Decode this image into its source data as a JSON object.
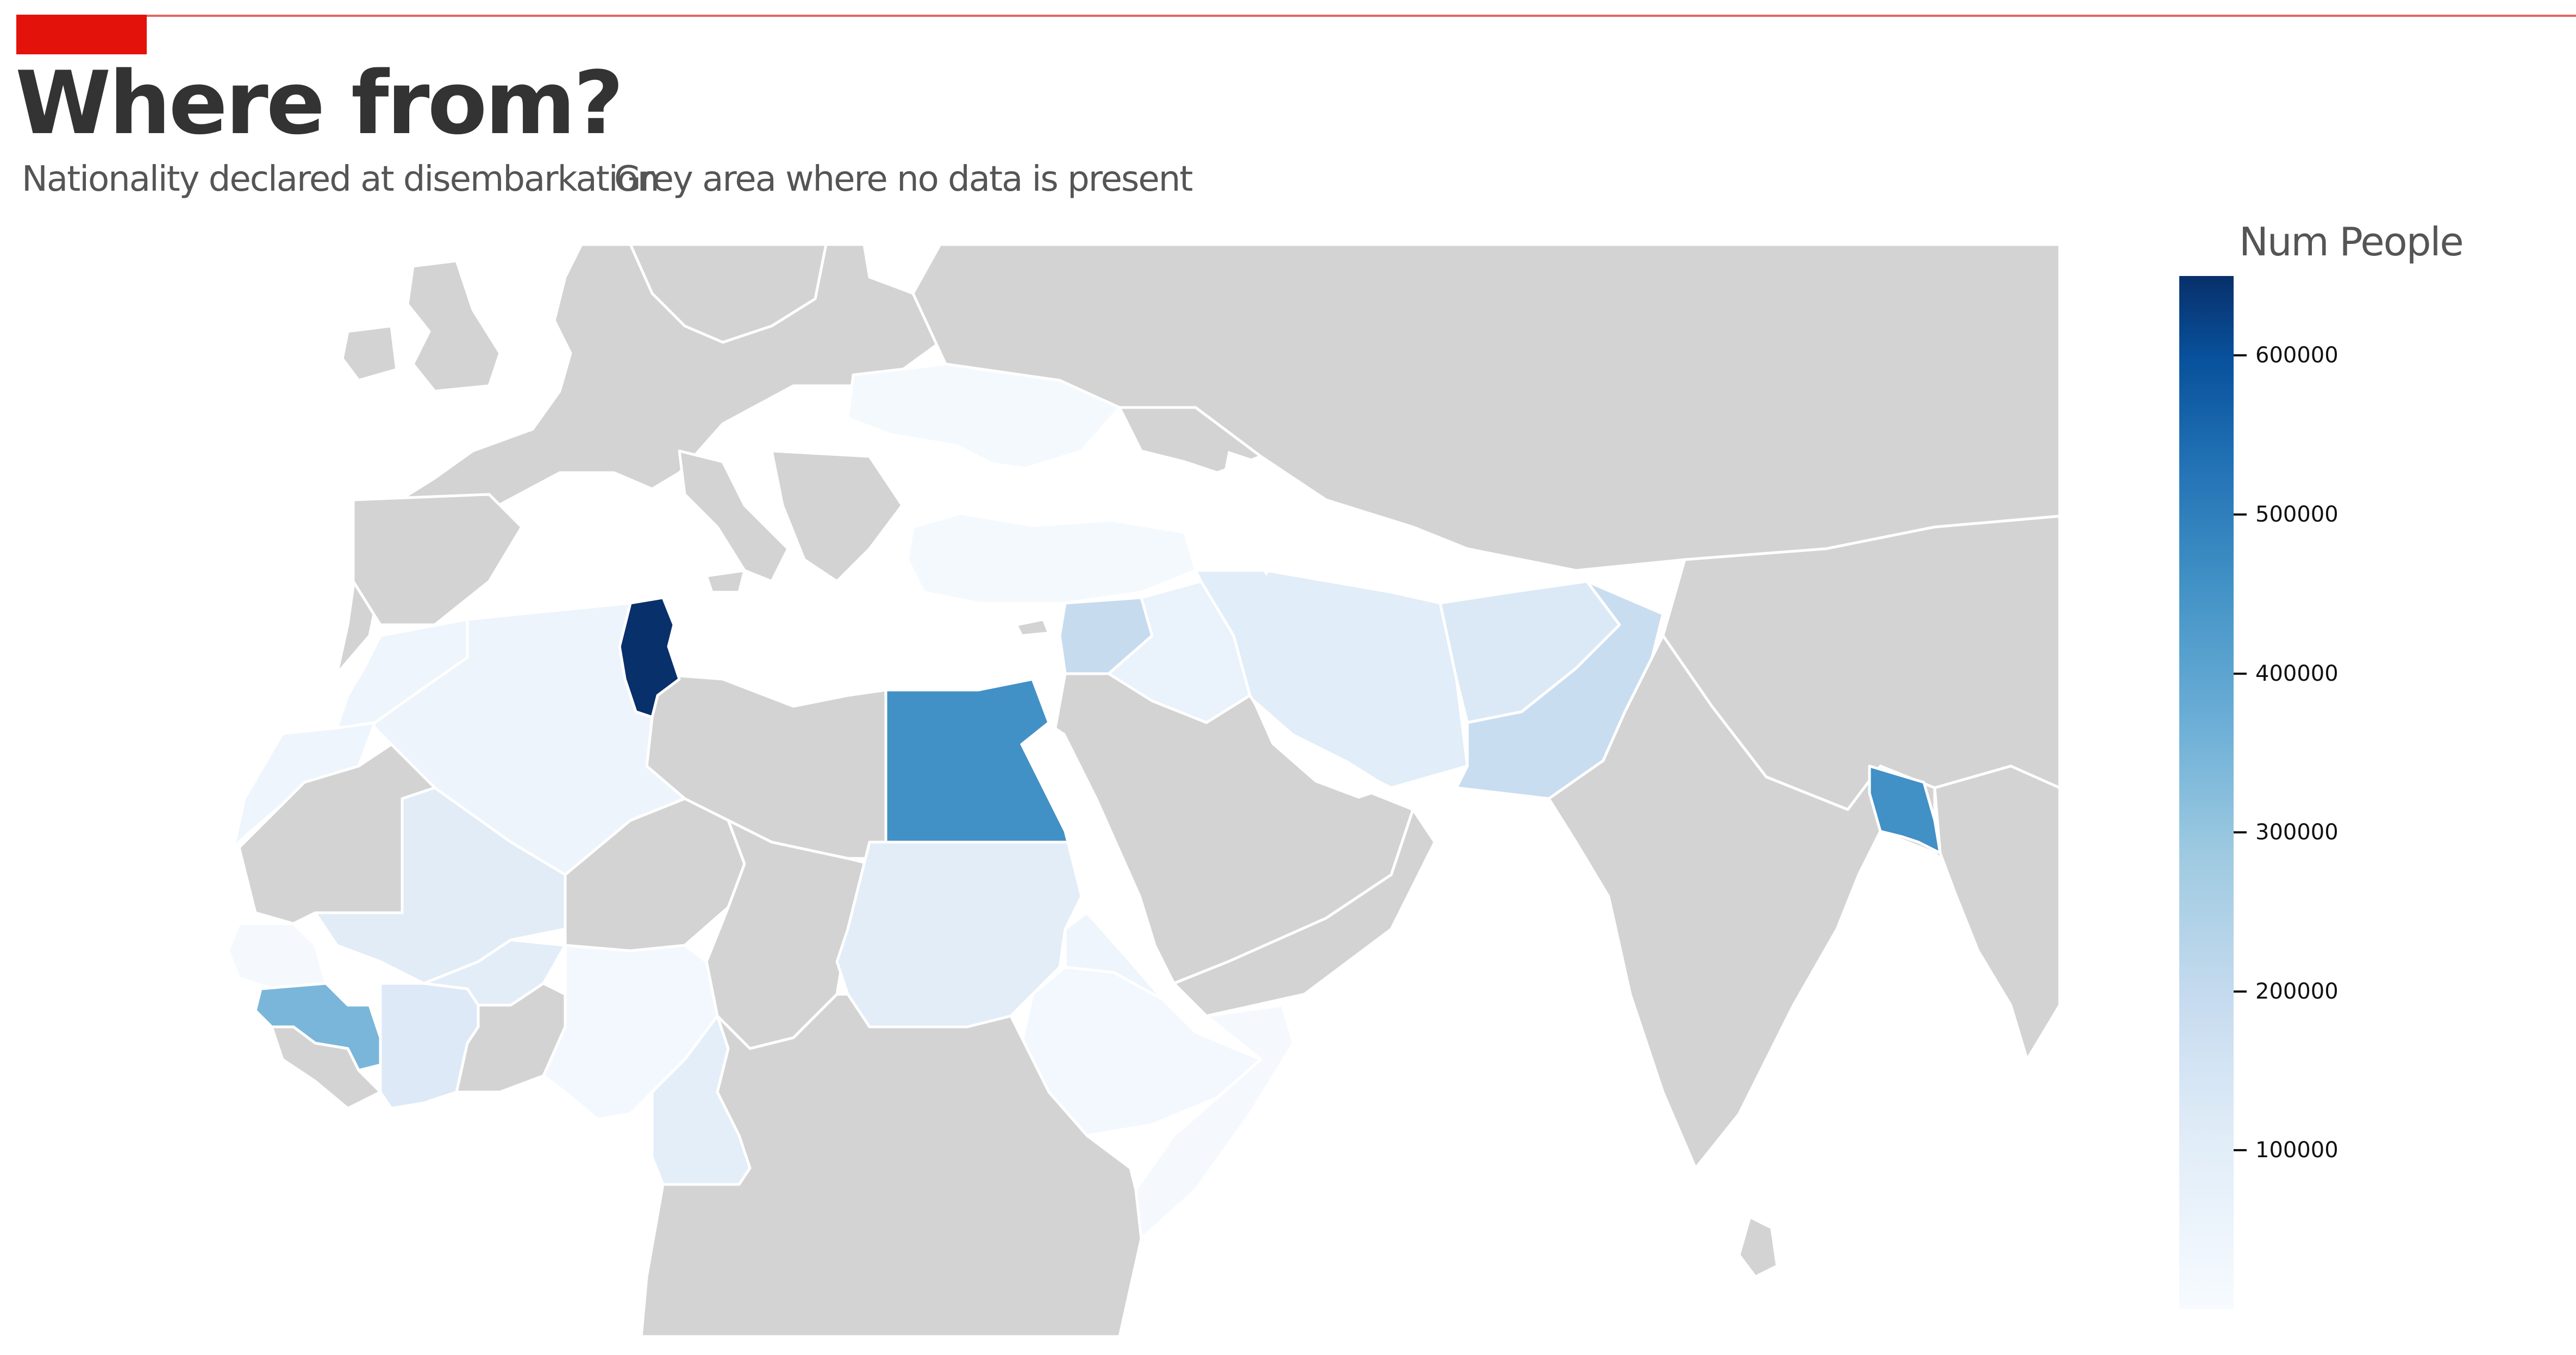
{
  "header": {
    "title": "Where from?",
    "subtitle": "Nationality declared at disembarkation",
    "note": "Grey area where no data is present"
  },
  "colors": {
    "accent_red": "#e3120b",
    "no_data_grey": "#d3d3d3",
    "border": "#ffffff",
    "text": "#333333"
  },
  "legend": {
    "title": "Num People",
    "colorscale": "Blues",
    "min": 0,
    "max": 650000,
    "ticks": [
      {
        "value": 100000,
        "label": "100000"
      },
      {
        "value": 200000,
        "label": "200000"
      },
      {
        "value": 300000,
        "label": "300000"
      },
      {
        "value": 400000,
        "label": "400000"
      },
      {
        "value": 500000,
        "label": "500000"
      },
      {
        "value": 600000,
        "label": "600000"
      }
    ]
  },
  "map": {
    "type": "choropleth",
    "region": "Europe, Africa, Middle East and South Asia",
    "countries_with_data": [
      {
        "country": "Tunisia",
        "value": 650000
      },
      {
        "country": "Egypt",
        "value": 400000
      },
      {
        "country": "Bangladesh",
        "value": 390000
      },
      {
        "country": "Guinea",
        "value": 240000
      },
      {
        "country": "Syria",
        "value": 150000
      },
      {
        "country": "Pakistan",
        "value": 140000
      },
      {
        "country": "Afghanistan",
        "value": 100000
      },
      {
        "country": "Iran",
        "value": 80000
      },
      {
        "country": "Côte d'Ivoire",
        "value": 90000
      },
      {
        "country": "Mali",
        "value": 80000
      },
      {
        "country": "Morocco",
        "value": 70000
      },
      {
        "country": "Algeria",
        "value": 60000
      },
      {
        "country": "Sudan",
        "value": 70000
      },
      {
        "country": "Cameroon",
        "value": 50000
      },
      {
        "country": "Burkina Faso",
        "value": 40000
      },
      {
        "country": "Eritrea",
        "value": 40000
      },
      {
        "country": "Iraq",
        "value": 40000
      },
      {
        "country": "Ukraine",
        "value": 30000
      },
      {
        "country": "Turkey",
        "value": 30000
      },
      {
        "country": "Nigeria",
        "value": 30000
      },
      {
        "country": "Ethiopia",
        "value": 25000
      },
      {
        "country": "Somalia",
        "value": 20000
      },
      {
        "country": "Western Sahara",
        "value": 30000
      },
      {
        "country": "Senegal",
        "value": 15000
      },
      {
        "country": "Gambia",
        "value": 15000
      }
    ]
  }
}
